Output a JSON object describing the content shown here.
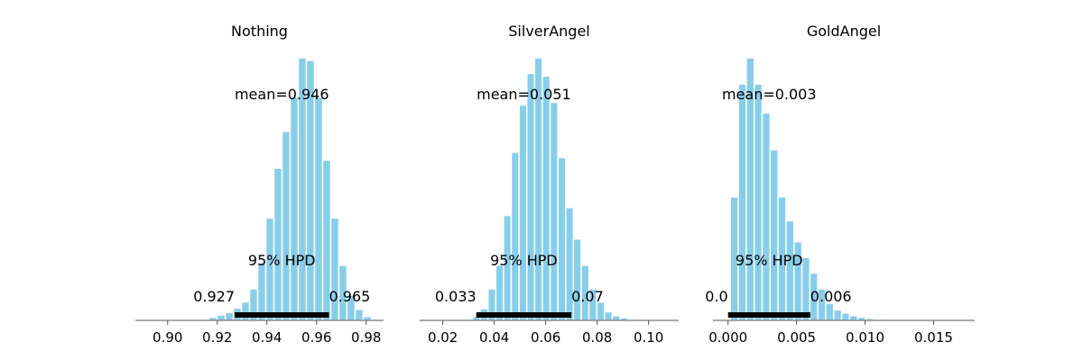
{
  "chart_data": [
    {
      "type": "histogram",
      "title": "Nothing",
      "mean_label": "mean=0.946",
      "hpd_label": "95% HPD",
      "hpd_low": 0.927,
      "hpd_high": 0.965,
      "hpd_low_label": "0.927",
      "hpd_high_label": "0.965",
      "xlim": [
        0.887,
        0.987
      ],
      "ylim": [
        0,
        1
      ],
      "xticks": [
        0.9,
        0.92,
        0.94,
        0.96,
        0.98
      ],
      "xtick_labels": [
        "0.90",
        "0.92",
        "0.94",
        "0.96",
        "0.98"
      ],
      "bin_start": 0.9134,
      "bin_width": 0.00327,
      "counts": [
        0.005,
        0.012,
        0.02,
        0.03,
        0.047,
        0.07,
        0.12,
        0.22,
        0.39,
        0.58,
        0.72,
        0.85,
        1.0,
        0.99,
        0.85,
        0.61,
        0.39,
        0.21,
        0.095,
        0.042,
        0.015,
        0.005
      ]
    },
    {
      "type": "histogram",
      "title": "SilverAngel",
      "mean_label": "mean=0.051",
      "hpd_label": "95% HPD",
      "hpd_low": 0.033,
      "hpd_high": 0.07,
      "hpd_low_label": "0.033",
      "hpd_high_label": "0.07",
      "xlim": [
        0.011,
        0.1117
      ],
      "ylim": [
        0,
        1
      ],
      "xticks": [
        0.02,
        0.04,
        0.06,
        0.08,
        0.1
      ],
      "xtick_labels": [
        "0.02",
        "0.04",
        "0.06",
        "0.08",
        "0.10"
      ],
      "bin_start": 0.0285,
      "bin_width": 0.00302,
      "counts": [
        0.005,
        0.015,
        0.045,
        0.12,
        0.21,
        0.4,
        0.64,
        0.82,
        0.94,
        1.0,
        0.93,
        0.83,
        0.62,
        0.43,
        0.31,
        0.21,
        0.12,
        0.07,
        0.033,
        0.018,
        0.01,
        0.005,
        0.002,
        0.002
      ]
    },
    {
      "type": "histogram",
      "title": "GoldAngel",
      "mean_label": "mean=0.003",
      "hpd_label": "95% HPD",
      "hpd_low": 0.0,
      "hpd_high": 0.006,
      "hpd_low_label": "0.0",
      "hpd_high_label": "0.006",
      "xlim": [
        -0.0011,
        0.018
      ],
      "ylim": [
        0,
        1
      ],
      "xticks": [
        0.0,
        0.005,
        0.01,
        0.015
      ],
      "xtick_labels": [
        "0.000",
        "0.005",
        "0.010",
        "0.015"
      ],
      "bin_start": 0.00017,
      "bin_width": 0.00058,
      "counts": [
        0.47,
        0.9,
        1.0,
        0.9,
        0.79,
        0.65,
        0.47,
        0.38,
        0.3,
        0.24,
        0.18,
        0.12,
        0.065,
        0.04,
        0.028,
        0.018,
        0.012,
        0.008,
        0.005,
        0.003
      ]
    }
  ]
}
